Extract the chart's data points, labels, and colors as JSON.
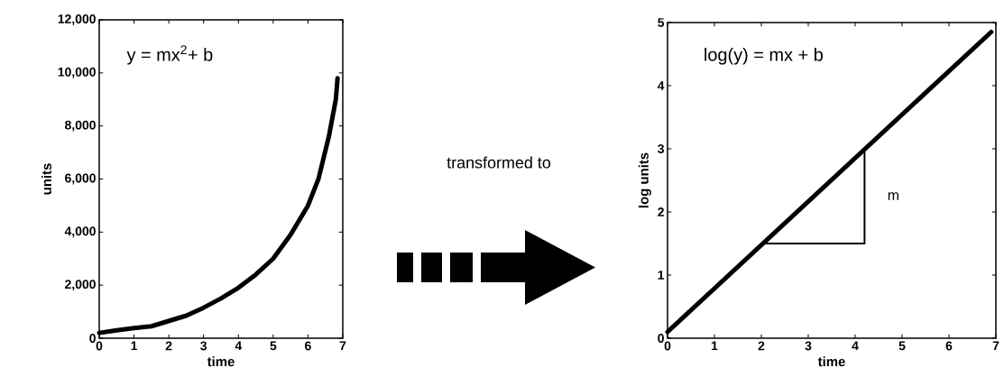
{
  "chart_data": [
    {
      "type": "line",
      "xlabel": "time",
      "ylabel": "units",
      "annotations": [
        "y = mx$^{2}$+ b"
      ],
      "series": [
        {
          "color": "#000000",
          "x": [
            0,
            0.5,
            1,
            1.5,
            2,
            2.5,
            3,
            3.5,
            4,
            4.5,
            5,
            5.5,
            6,
            6.3,
            6.6,
            6.8,
            6.85
          ],
          "values": [
            200,
            300,
            380,
            450,
            650,
            850,
            1150,
            1500,
            1900,
            2400,
            3000,
            3900,
            5000,
            6000,
            7600,
            9000,
            9800
          ]
        }
      ],
      "xlim": [
        0,
        7
      ],
      "ylim": [
        0,
        12000
      ],
      "xticks": [
        0,
        1,
        2,
        3,
        4,
        5,
        6,
        7
      ],
      "yticks": [
        0,
        {
          "value": 2000,
          "label": "2,000"
        },
        {
          "value": 4000,
          "label": "4,000"
        },
        {
          "value": 6000,
          "label": "6,000"
        },
        {
          "value": 8000,
          "label": "8,000"
        },
        {
          "value": 10000,
          "label": "10,000"
        },
        {
          "value": 12000,
          "label": "12,000"
        }
      ]
    },
    {
      "type": "other",
      "annotations": [
        "transformed to"
      ]
    },
    {
      "type": "line",
      "xlabel": "time",
      "ylabel": "log units",
      "annotations": [
        "log(y) = mx + b",
        "m"
      ],
      "series": [
        {
          "color": "#000000",
          "x": [
            0,
            6.9
          ],
          "values": [
            0.1,
            4.85
          ]
        },
        {
          "color": "#000000",
          "x": [
            2.1,
            4.2,
            4.2
          ],
          "values": [
            1.5,
            1.5,
            2.95
          ]
        }
      ],
      "xlim": [
        0,
        7
      ],
      "ylim": [
        0,
        5
      ],
      "xticks": [
        0,
        1,
        2,
        3,
        4,
        5,
        6,
        7
      ],
      "yticks": [
        0,
        1,
        2,
        3,
        4,
        5
      ]
    }
  ]
}
